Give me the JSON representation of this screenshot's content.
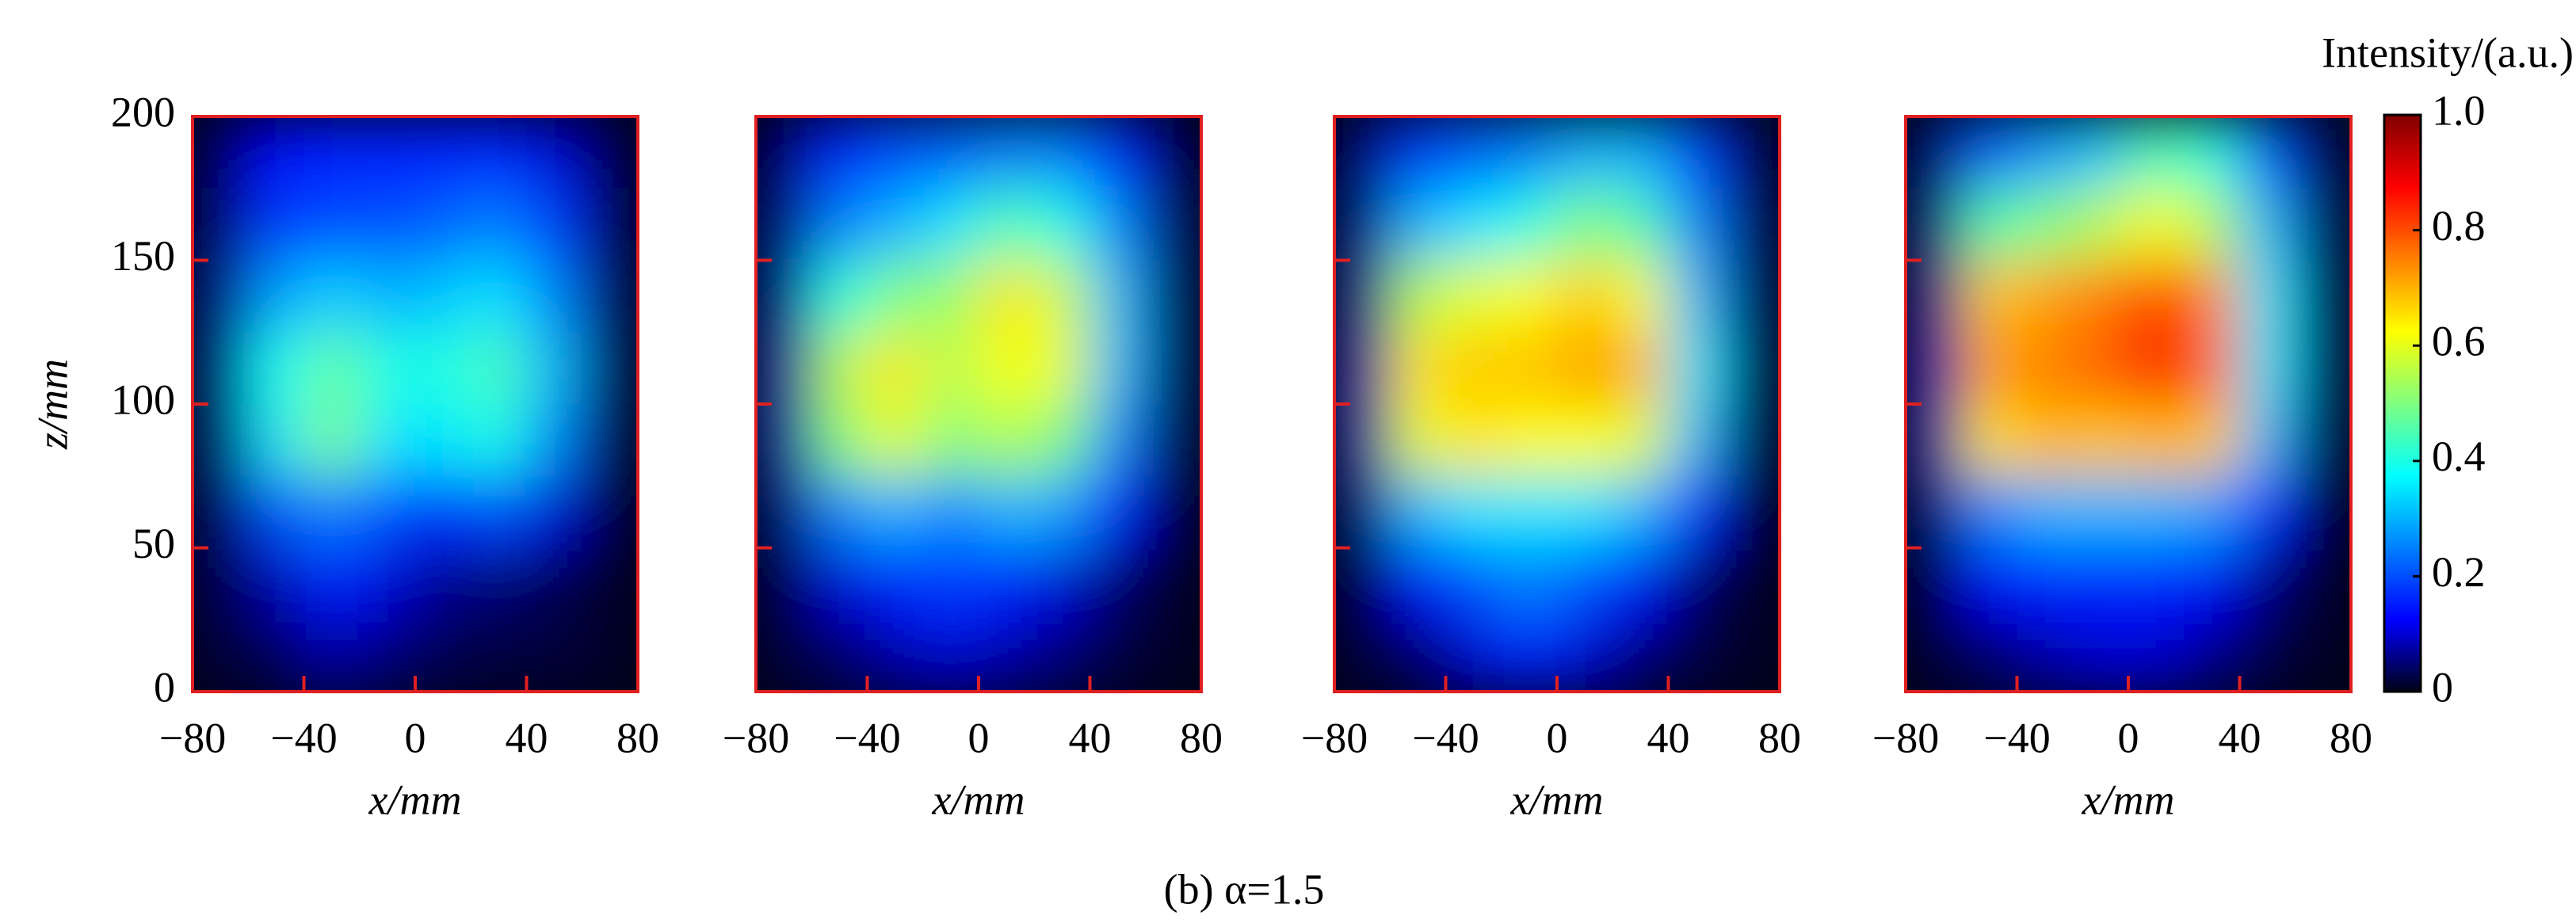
{
  "chart_data": [
    {
      "type": "heatmap",
      "xlim": [
        -80,
        80
      ],
      "ylim": [
        0,
        200
      ],
      "xticks": [
        {
          "value": -80,
          "label": "−80"
        },
        {
          "value": -40,
          "label": "−40"
        },
        0,
        40,
        80
      ],
      "yticks": [
        0,
        50,
        100,
        150,
        200
      ],
      "ytick_labels": true,
      "xlabel": "x/mm",
      "ylabel": "z/mm",
      "frame_color": "#e02020",
      "x_bins": [
        -80,
        -60,
        -40,
        -20,
        0,
        20,
        40,
        60,
        80
      ],
      "z_bins": [
        0,
        25,
        50,
        75,
        100,
        125,
        150,
        175,
        200
      ],
      "values": [
        [
          0.02,
          0.03,
          0.08,
          0.05,
          0.03,
          0.02,
          0.02,
          0.01
        ],
        [
          0.03,
          0.08,
          0.15,
          0.1,
          0.06,
          0.05,
          0.03,
          0.01
        ],
        [
          0.04,
          0.2,
          0.25,
          0.2,
          0.15,
          0.2,
          0.1,
          0.02
        ],
        [
          0.05,
          0.35,
          0.5,
          0.35,
          0.35,
          0.4,
          0.25,
          0.03
        ],
        [
          0.06,
          0.38,
          0.48,
          0.4,
          0.4,
          0.45,
          0.3,
          0.04
        ],
        [
          0.06,
          0.28,
          0.33,
          0.3,
          0.32,
          0.35,
          0.25,
          0.04
        ],
        [
          0.05,
          0.18,
          0.2,
          0.2,
          0.22,
          0.25,
          0.18,
          0.04
        ],
        [
          0.04,
          0.12,
          0.15,
          0.15,
          0.15,
          0.15,
          0.1,
          0.03
        ]
      ]
    },
    {
      "type": "heatmap",
      "xlim": [
        -80,
        80
      ],
      "ylim": [
        0,
        200
      ],
      "xticks": [
        {
          "value": -80,
          "label": "−80"
        },
        {
          "value": -40,
          "label": "−40"
        },
        0,
        40,
        80
      ],
      "yticks": [
        0,
        50,
        100,
        150,
        200
      ],
      "ytick_labels": false,
      "xlabel": "x/mm",
      "frame_color": "#e02020",
      "x_bins": [
        -80,
        -60,
        -40,
        -20,
        0,
        20,
        40,
        60,
        80
      ],
      "z_bins": [
        0,
        25,
        50,
        75,
        100,
        125,
        150,
        175,
        200
      ],
      "values": [
        [
          0.02,
          0.04,
          0.08,
          0.1,
          0.08,
          0.05,
          0.02,
          0.01
        ],
        [
          0.03,
          0.1,
          0.15,
          0.18,
          0.15,
          0.1,
          0.04,
          0.01
        ],
        [
          0.05,
          0.25,
          0.3,
          0.25,
          0.3,
          0.28,
          0.12,
          0.02
        ],
        [
          0.08,
          0.5,
          0.6,
          0.5,
          0.55,
          0.5,
          0.25,
          0.03
        ],
        [
          0.08,
          0.55,
          0.65,
          0.55,
          0.62,
          0.6,
          0.3,
          0.04
        ],
        [
          0.07,
          0.4,
          0.5,
          0.52,
          0.65,
          0.58,
          0.3,
          0.04
        ],
        [
          0.06,
          0.25,
          0.3,
          0.35,
          0.45,
          0.4,
          0.25,
          0.04
        ],
        [
          0.05,
          0.15,
          0.2,
          0.22,
          0.25,
          0.25,
          0.15,
          0.03
        ]
      ]
    },
    {
      "type": "heatmap",
      "xlim": [
        -80,
        80
      ],
      "ylim": [
        0,
        200
      ],
      "xticks": [
        {
          "value": -80,
          "label": "−80"
        },
        {
          "value": -40,
          "label": "−40"
        },
        0,
        40,
        80
      ],
      "yticks": [
        0,
        50,
        100,
        150,
        200
      ],
      "ytick_labels": false,
      "xlabel": "x/mm",
      "frame_color": "#e02020",
      "x_bins": [
        -80,
        -60,
        -40,
        -20,
        0,
        20,
        40,
        60,
        80
      ],
      "z_bins": [
        0,
        25,
        50,
        75,
        100,
        125,
        150,
        175,
        200
      ],
      "values": [
        [
          0.02,
          0.04,
          0.1,
          0.15,
          0.1,
          0.05,
          0.02,
          0.01
        ],
        [
          0.03,
          0.12,
          0.2,
          0.25,
          0.2,
          0.12,
          0.04,
          0.01
        ],
        [
          0.05,
          0.3,
          0.35,
          0.35,
          0.35,
          0.3,
          0.15,
          0.02
        ],
        [
          0.08,
          0.6,
          0.65,
          0.62,
          0.62,
          0.6,
          0.3,
          0.03
        ],
        [
          0.08,
          0.65,
          0.68,
          0.68,
          0.72,
          0.7,
          0.35,
          0.04
        ],
        [
          0.07,
          0.55,
          0.6,
          0.62,
          0.68,
          0.62,
          0.3,
          0.04
        ],
        [
          0.06,
          0.3,
          0.35,
          0.4,
          0.5,
          0.45,
          0.25,
          0.04
        ],
        [
          0.05,
          0.18,
          0.22,
          0.25,
          0.3,
          0.3,
          0.18,
          0.03
        ]
      ]
    },
    {
      "type": "heatmap",
      "xlim": [
        -80,
        80
      ],
      "ylim": [
        0,
        200
      ],
      "xticks": [
        {
          "value": -80,
          "label": "−80"
        },
        {
          "value": -40,
          "label": "−40"
        },
        0,
        40,
        80
      ],
      "yticks": [
        0,
        50,
        100,
        150,
        200
      ],
      "ytick_labels": false,
      "xlabel": "x/mm",
      "frame_color": "#e02020",
      "x_bins": [
        -80,
        -60,
        -40,
        -20,
        0,
        20,
        40,
        60,
        80
      ],
      "z_bins": [
        0,
        25,
        50,
        75,
        100,
        125,
        150,
        175,
        200
      ],
      "values": [
        [
          0.02,
          0.04,
          0.08,
          0.1,
          0.1,
          0.06,
          0.02,
          0.01
        ],
        [
          0.03,
          0.12,
          0.15,
          0.15,
          0.15,
          0.12,
          0.05,
          0.01
        ],
        [
          0.05,
          0.25,
          0.3,
          0.3,
          0.3,
          0.28,
          0.15,
          0.02
        ],
        [
          0.08,
          0.65,
          0.7,
          0.68,
          0.7,
          0.68,
          0.3,
          0.03
        ],
        [
          0.08,
          0.72,
          0.75,
          0.78,
          0.88,
          0.78,
          0.35,
          0.04
        ],
        [
          0.07,
          0.68,
          0.72,
          0.75,
          0.82,
          0.75,
          0.35,
          0.04
        ],
        [
          0.06,
          0.45,
          0.5,
          0.55,
          0.62,
          0.55,
          0.3,
          0.04
        ],
        [
          0.05,
          0.22,
          0.28,
          0.32,
          0.45,
          0.4,
          0.2,
          0.03
        ]
      ]
    }
  ],
  "colorbar": {
    "label": "Intensity/(a.u.)",
    "colormap": "jet",
    "clim": [
      0,
      1
    ],
    "ticks": [
      0,
      0.2,
      0.4,
      0.6,
      0.8,
      {
        "value": 1,
        "label": "1.0"
      }
    ]
  },
  "caption": "(b) α=1.5"
}
